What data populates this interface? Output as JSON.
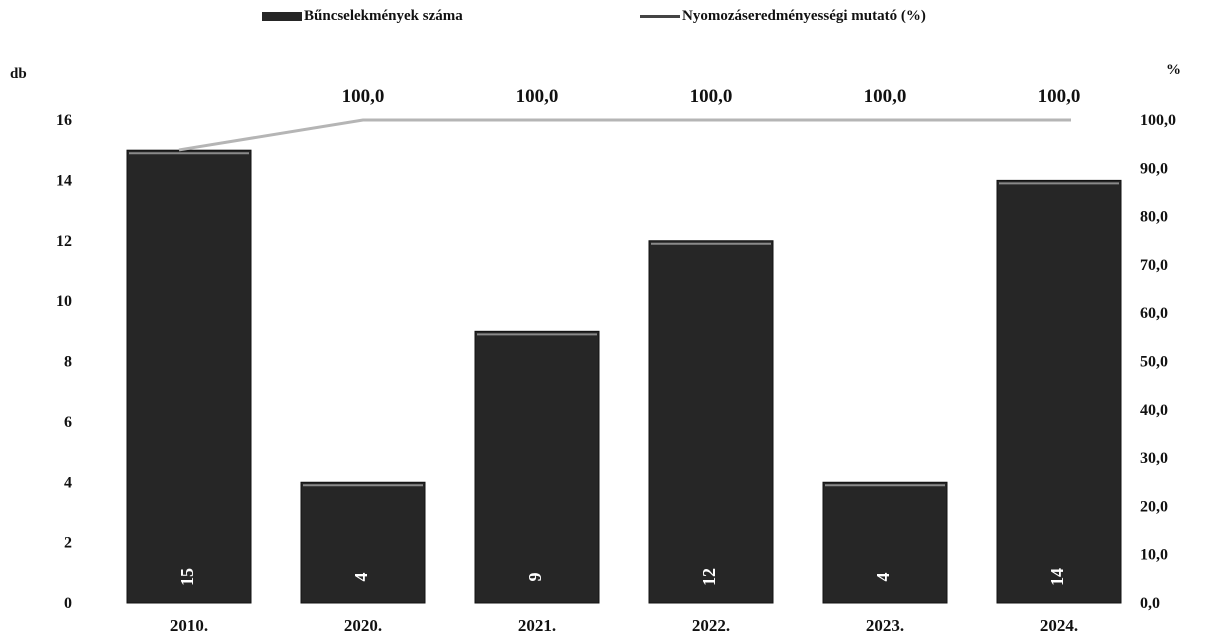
{
  "chart_data": {
    "type": "bar",
    "categories": [
      "2010.",
      "2020.",
      "2021.",
      "2022.",
      "2023.",
      "2024."
    ],
    "series": [
      {
        "name": "Bűncselekmények száma",
        "type": "bar",
        "axis": "left",
        "values": [
          15,
          4,
          9,
          12,
          4,
          14
        ],
        "data_labels": [
          "15",
          "4",
          "9",
          "12",
          "4",
          "14"
        ],
        "color": "#262626"
      },
      {
        "name": "Nyomozáseredményességi mutató (%)",
        "type": "line",
        "axis": "right",
        "values": [
          93.8,
          100.0,
          100.0,
          100.0,
          100.0,
          100.0
        ],
        "data_labels": [
          "",
          "100,0",
          "100,0",
          "100,0",
          "100,0",
          "100,0"
        ],
        "color": "#b5b5b5"
      }
    ],
    "y_left": {
      "unit": "db",
      "range": [
        0,
        16
      ],
      "ticks": [
        "0",
        "2",
        "4",
        "6",
        "8",
        "10",
        "12",
        "14",
        "16"
      ]
    },
    "y_right": {
      "unit": "%",
      "range": [
        0,
        100
      ],
      "ticks": [
        "0,0",
        "10,0",
        "20,0",
        "30,0",
        "40,0",
        "50,0",
        "60,0",
        "70,0",
        "80,0",
        "90,0",
        "100,0"
      ]
    },
    "legend_position": "top-center",
    "grid": false
  }
}
